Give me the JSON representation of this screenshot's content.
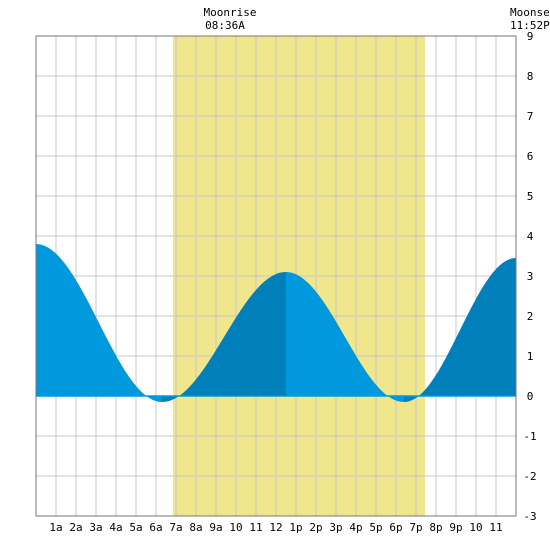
{
  "header": {
    "moonrise_label": "Moonrise",
    "moonrise_time": "08:36A",
    "moonset_label": "Moonset",
    "moonset_time": "11:52P"
  },
  "chart_data": {
    "type": "area",
    "title": "",
    "xlabel": "",
    "ylabel": "",
    "x_range_hours": [
      0,
      24
    ],
    "ylim": [
      -3,
      9
    ],
    "grid": true,
    "x_tick_labels": [
      "1a",
      "2a",
      "3a",
      "4a",
      "5a",
      "6a",
      "7a",
      "8a",
      "9a",
      "10",
      "11",
      "12",
      "1p",
      "2p",
      "3p",
      "4p",
      "5p",
      "6p",
      "7p",
      "8p",
      "9p",
      "10",
      "11"
    ],
    "y_tick_labels": [
      "9",
      "8",
      "7",
      "6",
      "5",
      "4",
      "3",
      "2",
      "1",
      "0",
      "-1",
      "-2",
      "-3"
    ],
    "daylight_hours": [
      6.85,
      19.45
    ],
    "tide_extremes": [
      {
        "time_h": 0.0,
        "height": 3.8
      },
      {
        "time_h": 6.3,
        "height": -0.15
      },
      {
        "time_h": 12.5,
        "height": 3.1
      },
      {
        "time_h": 18.4,
        "height": -0.15
      },
      {
        "time_h": 24.0,
        "height": 3.45
      }
    ],
    "colors": {
      "falling_tide": "#0099dd",
      "rising_tide": "#0080bb",
      "daylight": "#f0e68c",
      "grid": "#c8c8c8",
      "zero_line": "#0099dd"
    }
  }
}
